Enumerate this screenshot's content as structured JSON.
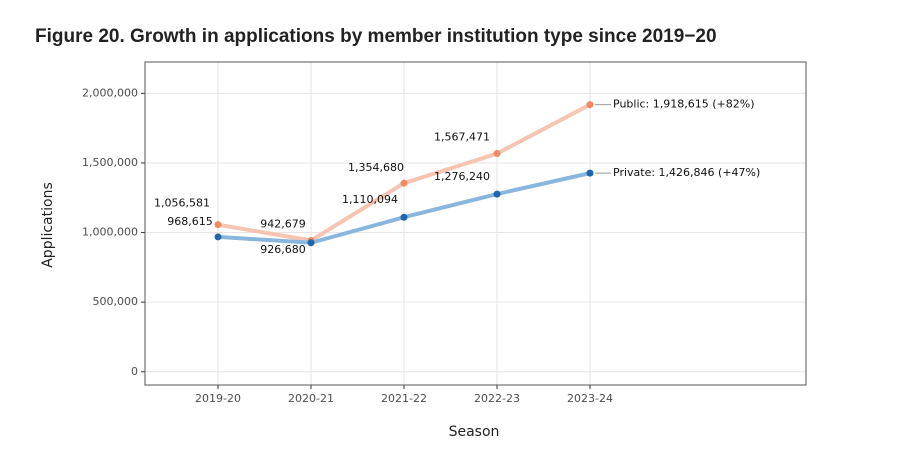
{
  "chart_data": {
    "type": "line",
    "title": "Figure 20. Growth in applications by member institution type since 2019−20",
    "x_label": "Season",
    "y_label": "Applications",
    "categories": [
      "2019-20",
      "2020-21",
      "2021-22",
      "2022-23",
      "2023-24"
    ],
    "series": [
      {
        "name": "Public",
        "color": "#f7c4b2",
        "marker_color": "#ef8a62",
        "values": [
          1056581,
          942679,
          1354680,
          1567471,
          1918615
        ],
        "value_labels": [
          "1,056,581",
          "942,679",
          "1,354,680",
          "1,567,471",
          null
        ]
      },
      {
        "name": "Private",
        "color": "#89b6dc",
        "marker_color": "#2166ac",
        "values": [
          968615,
          926680,
          1110094,
          1276240,
          1426846
        ],
        "value_labels": [
          "968,615",
          "926,680",
          "1,110,094",
          "1,276,240",
          null
        ]
      }
    ],
    "annotations": [
      {
        "text": "Public: 1,918,615 (+82%)",
        "series": 0,
        "index": 4
      },
      {
        "text": "Private: 1,426,846 (+47%)",
        "series": 1,
        "index": 4
      }
    ],
    "ylim": [
      -95000,
      2225000
    ],
    "yticks": [
      {
        "value": 0,
        "label": "0"
      },
      {
        "value": 500000,
        "label": "500,000"
      },
      {
        "value": 1000000,
        "label": "1,000,000"
      },
      {
        "value": 1500000,
        "label": "1,500,000"
      },
      {
        "value": 2000000,
        "label": "2,000,000"
      }
    ],
    "grid": true
  }
}
